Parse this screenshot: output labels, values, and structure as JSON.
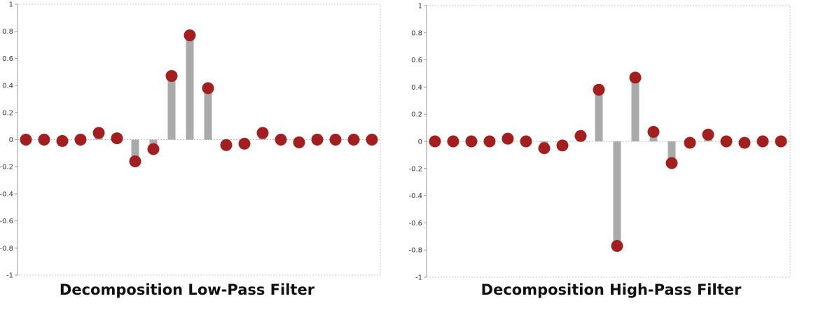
{
  "chart_data": [
    {
      "type": "stem",
      "title": "Decomposition Low-Pass Filter",
      "ylim": [
        -1,
        1
      ],
      "yticks": [
        "1",
        "0.8",
        "0.6",
        "0.4",
        "0.2",
        "0",
        "-0.2",
        "-0.4",
        "-0.6",
        "-0.8",
        "-1"
      ],
      "x": [
        1,
        2,
        3,
        4,
        5,
        6,
        7,
        8,
        9,
        10,
        11,
        12,
        13,
        14,
        15,
        16,
        17,
        18,
        19,
        20
      ],
      "values": [
        0.0,
        0.0,
        -0.01,
        0.0,
        0.05,
        0.01,
        -0.16,
        -0.07,
        0.47,
        0.77,
        0.38,
        -0.04,
        -0.03,
        0.05,
        0.0,
        -0.02,
        0.0,
        0.0,
        0.0,
        0.0
      ],
      "stem_color": "#aaaaaa",
      "marker_color": "#a31f1f",
      "grid": false
    },
    {
      "type": "stem",
      "title": "Decomposition High-Pass Filter",
      "ylim": [
        -1,
        1
      ],
      "yticks": [
        "1",
        "0.8",
        "0.6",
        "0.4",
        "0.2",
        "0",
        "-0.2",
        "-0.4",
        "-0.6",
        "-0.8",
        "-1"
      ],
      "x": [
        1,
        2,
        3,
        4,
        5,
        6,
        7,
        8,
        9,
        10,
        11,
        12,
        13,
        14,
        15,
        16,
        17,
        18,
        19,
        20
      ],
      "values": [
        0.0,
        0.0,
        0.0,
        0.0,
        0.02,
        0.0,
        -0.05,
        -0.03,
        0.04,
        0.38,
        -0.77,
        0.47,
        0.07,
        -0.16,
        -0.01,
        0.05,
        0.0,
        -0.01,
        0.0,
        0.0
      ],
      "stem_color": "#aaaaaa",
      "marker_color": "#a31f1f",
      "grid": false
    }
  ]
}
